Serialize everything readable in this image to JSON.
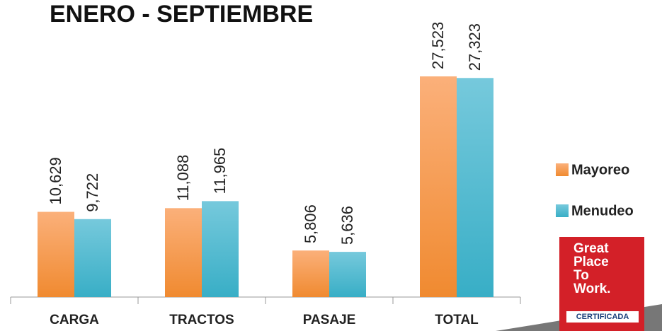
{
  "chart_data": {
    "type": "bar",
    "title": "ENERO - SEPTIEMBRE",
    "categories": [
      "CARGA",
      "TRACTOS",
      "PASAJE",
      "TOTAL"
    ],
    "series": [
      {
        "name": "Mayoreo",
        "color": "#f5a05a",
        "values": [
          10629,
          11088,
          5806,
          27523
        ],
        "value_labels": [
          "10,629",
          "11,088",
          "5,806",
          "27,523"
        ]
      },
      {
        "name": "Menudeo",
        "color": "#4bb8d0",
        "values": [
          9722,
          11965,
          5636,
          27323
        ],
        "value_labels": [
          "9,722",
          "11,965",
          "5,636",
          "27,323"
        ]
      }
    ]
  },
  "badge": {
    "lines": [
      "Great",
      "Place",
      "To",
      "Work."
    ],
    "certified": "CERTIFICADA"
  }
}
